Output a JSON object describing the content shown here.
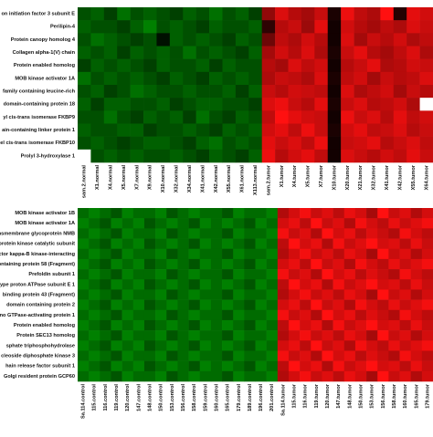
{
  "chart_data": [
    {
      "type": "heatmap",
      "colorscale": [
        "#008000",
        "#000000",
        "#ff1010"
      ],
      "rows": [
        "on initiation factor 3 subunit E",
        "Perilipin-4",
        "Protein canopy homolog 4",
        "Collagen alpha-1(V) chain",
        "Protein enabled homolog",
        "MOB kinase activator 1A",
        "family containing leucine-rich",
        "domain-containing protein 18",
        "yl cis-trans isomerase FKBP9",
        "ain-containing linker protein 1",
        "el cis-trans isomerase FKBP10",
        "Prolyl 3-hydroxylase 1"
      ],
      "columns": [
        "sam.2.normal",
        "X1.normal",
        "X4.normal",
        "X5.normal",
        "X7.normal",
        "X9.normal",
        "X10.normal",
        "X32.normal",
        "X34.normal",
        "X41.normal",
        "X42.normal",
        "X55.normal",
        "X61.normal",
        "X113.normal",
        "sam.2.tumor",
        "X1.tumor",
        "X4.tumor",
        "X5.tumor",
        "X7.tumor",
        "X10.tumor",
        "X20.tumor",
        "X21.tumor",
        "X32.tumor",
        "X41.tumor",
        "X42.tumor",
        "X55.tumor",
        "X64.tumor"
      ],
      "values": [
        [
          -0.5,
          -0.6,
          -0.4,
          -0.7,
          -0.5,
          -0.6,
          -0.5,
          -0.4,
          -0.6,
          -0.5,
          -0.7,
          -0.5,
          -0.6,
          -0.4,
          1.6,
          2.4,
          2.0,
          1.8,
          2.2,
          0.3,
          2.6,
          2.1,
          1.9,
          2.8,
          0.4,
          2.5,
          2.3
        ],
        [
          -0.6,
          -0.5,
          -0.5,
          -0.4,
          -0.6,
          -0.8,
          -0.5,
          -0.6,
          -0.5,
          -0.4,
          -0.6,
          -0.5,
          -0.5,
          -0.6,
          0.5,
          2.0,
          2.2,
          1.7,
          2.5,
          0.2,
          2.3,
          2.0,
          1.8,
          2.1,
          1.9,
          2.4,
          2.2
        ],
        [
          -0.5,
          -0.7,
          -0.6,
          -0.5,
          -0.4,
          -0.5,
          -0.1,
          -0.6,
          -0.5,
          -0.6,
          -0.5,
          -0.4,
          -0.6,
          -0.5,
          1.2,
          2.1,
          1.9,
          2.3,
          2.0,
          0.2,
          2.4,
          1.8,
          2.2,
          2.0,
          2.3,
          1.9,
          2.1
        ],
        [
          -0.6,
          -0.5,
          -0.6,
          -0.4,
          -0.6,
          -0.5,
          -0.6,
          -0.5,
          -0.7,
          -0.5,
          -0.6,
          -0.5,
          -0.4,
          -0.6,
          1.8,
          2.3,
          2.0,
          2.4,
          1.9,
          0.3,
          2.2,
          2.5,
          2.0,
          1.8,
          2.1,
          2.4,
          1.9
        ],
        [
          -0.4,
          -0.6,
          -0.5,
          -0.6,
          -0.5,
          -0.4,
          -0.6,
          -0.5,
          -0.5,
          -0.6,
          -0.4,
          -0.6,
          -0.5,
          -0.5,
          2.0,
          1.8,
          2.4,
          2.1,
          2.3,
          0.2,
          2.0,
          2.2,
          2.5,
          1.9,
          2.0,
          2.3,
          2.2
        ],
        [
          -0.7,
          -0.5,
          -0.6,
          -0.5,
          -0.6,
          -0.5,
          -0.4,
          -0.6,
          -0.5,
          -0.4,
          -0.6,
          -0.5,
          -0.6,
          -0.5,
          1.9,
          2.2,
          2.1,
          1.9,
          2.4,
          0.3,
          2.1,
          2.3,
          1.8,
          2.2,
          2.0,
          2.1,
          2.4
        ],
        [
          -0.5,
          -0.6,
          -0.4,
          -0.5,
          -0.7,
          -0.6,
          -0.5,
          -0.5,
          -0.6,
          -0.5,
          -0.5,
          -0.6,
          -0.4,
          -0.6,
          2.2,
          2.0,
          2.3,
          2.2,
          2.1,
          0.2,
          2.4,
          1.9,
          2.1,
          2.3,
          1.8,
          2.2,
          2.0
        ],
        [
          -0.6,
          -0.4,
          -0.6,
          -0.6,
          -0.5,
          -0.5,
          -0.6,
          -0.4,
          -0.5,
          -0.6,
          -0.6,
          -0.5,
          -0.5,
          -0.4,
          2.4,
          2.6,
          2.2,
          2.0,
          2.5,
          0.3,
          2.2,
          2.4,
          2.0,
          2.1,
          2.3,
          1.9,
          null
        ],
        [
          -0.5,
          -0.5,
          -0.7,
          -0.5,
          -0.4,
          -0.6,
          -0.5,
          -0.6,
          -0.4,
          -0.7,
          -0.5,
          -0.4,
          -0.6,
          -0.5,
          2.1,
          2.8,
          2.5,
          2.3,
          2.2,
          0.2,
          2.6,
          2.2,
          2.4,
          2.0,
          2.5,
          2.1,
          2.3
        ],
        [
          -0.6,
          -0.5,
          -0.5,
          -0.6,
          -0.6,
          -0.4,
          -0.5,
          -0.5,
          -0.6,
          -0.5,
          -0.4,
          -0.6,
          -0.5,
          -0.6,
          2.3,
          2.5,
          2.1,
          2.6,
          2.2,
          0.3,
          2.3,
          2.5,
          2.1,
          2.2,
          2.4,
          2.0,
          2.2
        ],
        [
          -0.5,
          -0.6,
          -0.5,
          -0.4,
          -0.5,
          -0.6,
          -0.6,
          -0.5,
          -0.4,
          -0.6,
          -0.7,
          -0.5,
          -0.6,
          -0.5,
          2.5,
          2.2,
          2.4,
          2.1,
          2.6,
          0.2,
          2.2,
          2.3,
          2.5,
          2.0,
          2.2,
          2.4,
          2.1
        ],
        [
          null,
          -0.5,
          -0.6,
          -0.5,
          -0.6,
          -0.5,
          -0.5,
          -0.6,
          -0.5,
          -0.4,
          -0.6,
          -0.5,
          -0.4,
          -0.6,
          2.6,
          2.0,
          2.3,
          2.5,
          2.1,
          0.2,
          2.4,
          2.2,
          2.0,
          2.3,
          2.1,
          2.5,
          2.2
        ]
      ]
    },
    {
      "type": "heatmap",
      "colorscale": [
        "#008000",
        "#000000",
        "#ff1010"
      ],
      "rows": [
        "MOB kinase activator 1B",
        "MOB kinase activator 1A",
        "ransmembrane glycoprotein NMB",
        "protein kinase catalytic subunit",
        "ctor kappa-B kinase-interacting",
        "containing protein 58 (Fragment)",
        "Prefoldin subunit 1",
        "type proton ATPase subunit E 1",
        "binding protein 43 (Fragment)",
        "domain containing protein 2",
        "no GTPase-activating protein 1",
        "Protein enabled homolog",
        "Protein SEC13 homolog",
        "sphate triphosphohydrolase",
        "cleoside diphosphate kinase 3",
        "hain release factor subunit 1",
        "Golgi resident protein GCP60"
      ],
      "columns": [
        "Sa.114.control",
        "115.control",
        "116.control",
        "119.control",
        "120.control",
        "147.control",
        "148.control",
        "150.control",
        "153.control",
        "156.control",
        "158.control",
        "159.control",
        "160.control",
        "165.control",
        "179.control",
        "189.control",
        "196.control",
        "201.control",
        "Sa.114.tumor",
        "115.tumor",
        "116.tumor",
        "119.tumor",
        "120.tumor",
        "147.tumor",
        "148.tumor",
        "150.tumor",
        "153.tumor",
        "156.tumor",
        "158.tumor",
        "160.tumor",
        "165.tumor",
        "179.tumor"
      ],
      "values": [
        [
          -0.5,
          -0.6,
          -0.5,
          -0.4,
          -0.6,
          -0.5,
          -0.5,
          -0.6,
          -0.4,
          -0.5,
          -0.6,
          -0.5,
          -0.5,
          -0.4,
          -0.6,
          -0.5,
          -0.5,
          -0.6,
          1.6,
          1.9,
          2.2,
          1.8,
          2.0,
          1.7,
          2.1,
          1.9,
          1.5,
          2.3,
          1.8,
          2.0,
          1.6,
          1.9
        ],
        [
          -0.6,
          -0.5,
          -0.4,
          -0.6,
          -0.5,
          -0.6,
          -0.4,
          -0.5,
          -0.6,
          -0.5,
          -0.4,
          -0.6,
          -0.5,
          -0.6,
          -0.5,
          -0.4,
          -0.6,
          -0.5,
          1.9,
          2.1,
          1.7,
          2.3,
          1.8,
          2.0,
          1.6,
          2.2,
          1.9,
          1.7,
          2.1,
          1.8,
          2.0,
          2.2
        ],
        [
          -0.5,
          -0.6,
          -0.5,
          -0.4,
          -0.6,
          -0.5,
          -0.5,
          -0.6,
          -0.4,
          -0.5,
          -0.6,
          -0.5,
          -0.5,
          -0.4,
          -0.6,
          -0.5,
          -0.5,
          -0.6,
          2.2,
          1.8,
          2.0,
          1.6,
          2.3,
          1.9,
          2.1,
          1.7,
          2.0,
          1.8,
          1.6,
          2.2,
          1.9,
          1.7
        ],
        [
          -0.6,
          -0.5,
          -0.4,
          -0.6,
          -0.5,
          -0.6,
          -0.4,
          -0.5,
          -0.6,
          -0.5,
          -0.4,
          -0.6,
          -0.5,
          -0.6,
          -0.5,
          -0.4,
          -0.6,
          -0.5,
          1.7,
          2.3,
          1.9,
          2.1,
          1.6,
          2.2,
          1.8,
          2.0,
          2.3,
          1.9,
          2.0,
          1.7,
          2.1,
          1.8
        ],
        [
          -0.5,
          -0.6,
          -0.5,
          -0.4,
          -0.6,
          -0.5,
          -0.5,
          -0.6,
          -0.4,
          -0.5,
          -0.6,
          -0.5,
          -0.5,
          -0.4,
          -0.6,
          -0.5,
          -0.5,
          -0.6,
          1.6,
          1.9,
          2.2,
          1.8,
          2.0,
          1.7,
          2.1,
          1.9,
          1.5,
          2.3,
          1.8,
          2.0,
          1.6,
          1.9
        ],
        [
          -0.6,
          -0.5,
          -0.4,
          -0.6,
          -0.5,
          -0.6,
          -0.4,
          -0.5,
          -0.6,
          -0.5,
          -0.4,
          -0.6,
          -0.5,
          -0.6,
          -0.5,
          -0.4,
          -0.6,
          -0.5,
          1.9,
          2.1,
          1.7,
          2.3,
          1.8,
          2.0,
          1.6,
          2.2,
          1.9,
          1.7,
          2.1,
          1.8,
          2.0,
          2.2
        ],
        [
          -0.5,
          -0.6,
          -0.5,
          -0.4,
          -0.6,
          -0.5,
          -0.5,
          -0.6,
          -0.4,
          -0.5,
          -0.6,
          -0.5,
          -0.5,
          -0.4,
          -0.6,
          -0.5,
          -0.5,
          -0.6,
          2.2,
          1.8,
          2.0,
          1.6,
          2.3,
          1.9,
          2.1,
          1.7,
          2.0,
          1.8,
          1.6,
          2.2,
          1.9,
          1.7
        ],
        [
          -0.6,
          -0.5,
          -0.4,
          -0.6,
          -0.5,
          -0.6,
          -0.4,
          -0.5,
          -0.6,
          -0.5,
          -0.4,
          -0.6,
          -0.5,
          -0.6,
          -0.5,
          -0.4,
          -0.6,
          -0.5,
          1.7,
          2.3,
          1.9,
          2.1,
          1.6,
          2.2,
          1.8,
          2.0,
          2.3,
          1.9,
          2.0,
          1.7,
          2.1,
          1.8
        ],
        [
          -0.5,
          -0.6,
          -0.5,
          -0.4,
          -0.6,
          -0.5,
          -0.5,
          -0.6,
          -0.4,
          -0.5,
          -0.6,
          -0.5,
          -0.5,
          -0.4,
          -0.6,
          -0.5,
          -0.5,
          -0.6,
          1.6,
          1.9,
          2.2,
          1.8,
          2.0,
          1.7,
          2.1,
          1.9,
          1.5,
          2.3,
          1.8,
          2.0,
          1.6,
          1.9
        ],
        [
          -0.6,
          -0.5,
          -0.4,
          -0.6,
          -0.5,
          -0.6,
          -0.4,
          -0.5,
          -0.6,
          -0.5,
          -0.4,
          -0.6,
          -0.5,
          -0.6,
          -0.5,
          -0.4,
          -0.6,
          -0.5,
          1.9,
          2.1,
          1.7,
          2.3,
          1.8,
          2.0,
          1.6,
          2.2,
          1.9,
          1.7,
          2.1,
          1.8,
          2.0,
          2.2
        ],
        [
          -0.5,
          -0.6,
          -0.5,
          -0.4,
          -0.6,
          -0.5,
          -0.5,
          -0.6,
          -0.4,
          -0.5,
          -0.6,
          -0.5,
          -0.5,
          -0.4,
          -0.6,
          -0.5,
          -0.5,
          -0.6,
          2.2,
          1.8,
          2.0,
          1.6,
          2.3,
          1.9,
          2.1,
          1.7,
          2.0,
          1.8,
          1.6,
          2.2,
          1.9,
          1.7
        ],
        [
          -0.6,
          -0.5,
          -0.4,
          -0.6,
          -0.5,
          -0.6,
          -0.4,
          -0.5,
          -0.6,
          -0.5,
          -0.4,
          -0.6,
          -0.5,
          -0.6,
          -0.5,
          -0.4,
          -0.6,
          -0.5,
          1.7,
          2.3,
          1.9,
          2.1,
          1.6,
          2.2,
          1.8,
          2.0,
          2.3,
          1.9,
          2.0,
          1.7,
          2.1,
          1.8
        ],
        [
          -0.5,
          -0.6,
          -0.5,
          -0.4,
          -0.6,
          -0.5,
          -0.5,
          -0.6,
          -0.4,
          -0.5,
          -0.6,
          -0.5,
          -0.5,
          -0.4,
          -0.6,
          -0.5,
          -0.5,
          -0.6,
          1.6,
          1.9,
          2.2,
          1.8,
          2.0,
          1.7,
          2.1,
          1.9,
          1.5,
          2.3,
          1.8,
          2.0,
          1.6,
          1.9
        ],
        [
          -0.6,
          -0.5,
          -0.4,
          -0.6,
          -0.5,
          -0.6,
          -0.4,
          -0.5,
          -0.6,
          -0.5,
          -0.4,
          -0.6,
          -0.5,
          -0.6,
          -0.5,
          -0.4,
          -0.6,
          -0.5,
          1.9,
          2.1,
          1.7,
          2.3,
          1.8,
          2.0,
          1.6,
          2.2,
          1.9,
          1.7,
          2.1,
          1.8,
          2.0,
          2.2
        ],
        [
          -0.5,
          -0.6,
          -0.5,
          -0.4,
          -0.6,
          -0.5,
          -0.5,
          -0.6,
          -0.4,
          -0.5,
          -0.6,
          -0.5,
          -0.5,
          -0.4,
          -0.6,
          -0.5,
          -0.5,
          -0.6,
          2.2,
          1.8,
          2.0,
          1.6,
          2.3,
          1.9,
          2.1,
          1.7,
          2.0,
          1.8,
          1.6,
          2.2,
          1.9,
          1.7
        ],
        [
          -0.6,
          -0.5,
          -0.4,
          -0.6,
          -0.5,
          -0.6,
          -0.4,
          -0.5,
          -0.6,
          -0.5,
          -0.4,
          -0.6,
          -0.5,
          -0.6,
          -0.5,
          -0.4,
          -0.6,
          -0.5,
          1.7,
          2.3,
          1.9,
          2.1,
          1.6,
          2.2,
          1.8,
          2.0,
          2.3,
          1.9,
          2.0,
          1.7,
          2.1,
          1.8
        ],
        [
          -0.5,
          -0.6,
          -0.5,
          -0.4,
          -0.6,
          -0.5,
          -0.5,
          -0.6,
          -0.4,
          -0.5,
          -0.6,
          -0.5,
          -0.5,
          -0.4,
          -0.6,
          -0.5,
          -0.5,
          -0.6,
          1.6,
          1.9,
          2.2,
          1.8,
          2.0,
          1.7,
          2.1,
          1.9,
          1.5,
          2.3,
          1.8,
          2.0,
          1.6,
          1.9
        ]
      ]
    }
  ]
}
